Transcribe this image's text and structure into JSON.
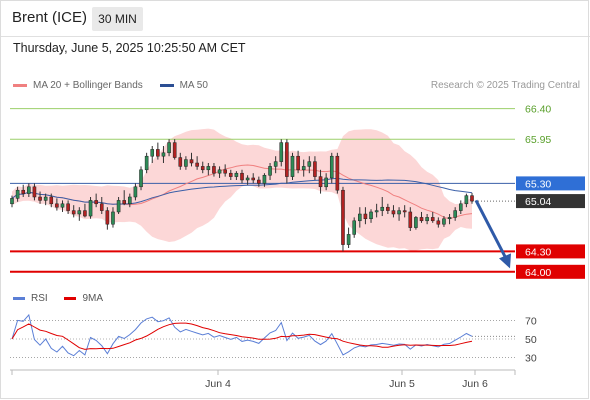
{
  "header": {
    "instrument": "Brent (ICE)",
    "timeframe": "30 MIN"
  },
  "timestamp": "Thursday, June 5, 2025 10:25:50 AM CET",
  "legend": {
    "ma20_label": "MA 20 + Bollinger Bands",
    "ma50_label": "MA 50",
    "copyright": "Research © 2025 Trading Central"
  },
  "rsi_legend": {
    "rsi_label": "RSI",
    "ma9_label": "9MA"
  },
  "colors": {
    "ma20": "#f08080",
    "ma50": "#3a5fa8",
    "band": "#fbd0d0",
    "green_level": "#9bcf6a",
    "blue_level": "#3a5fa8",
    "red_level": "#e00000",
    "candle_up": "#2e8b57",
    "candle_down": "#b22222",
    "arrow": "#2f5aa8",
    "last_price": "#333333"
  },
  "chart_data": {
    "type": "candlestick",
    "y_range": [
      63.85,
      66.6
    ],
    "x_labels": [
      "Jun 4",
      "Jun 5",
      "Jun 6"
    ],
    "levels": [
      {
        "value": 66.4,
        "label": "66.40",
        "kind": "resistance-green"
      },
      {
        "value": 65.95,
        "label": "65.95",
        "kind": "resistance-green"
      },
      {
        "value": 65.3,
        "label": "65.30",
        "kind": "pivot-blue"
      },
      {
        "value": 65.04,
        "label": "65.04",
        "kind": "last-price"
      },
      {
        "value": 64.3,
        "label": "64.30",
        "kind": "support-red"
      },
      {
        "value": 64.0,
        "label": "64.00",
        "kind": "support-red"
      }
    ],
    "forecast_arrow": {
      "from": 65.05,
      "to": 64.05,
      "direction": "down"
    },
    "candles": [
      [
        65.0,
        65.12,
        64.95,
        65.08
      ],
      [
        65.08,
        65.25,
        65.03,
        65.2
      ],
      [
        65.2,
        65.28,
        65.1,
        65.15
      ],
      [
        65.15,
        65.3,
        65.1,
        65.25
      ],
      [
        65.25,
        65.3,
        65.05,
        65.1
      ],
      [
        65.1,
        65.18,
        65.0,
        65.05
      ],
      [
        65.05,
        65.15,
        64.98,
        65.1
      ],
      [
        65.1,
        65.15,
        64.95,
        65.0
      ],
      [
        65.0,
        65.08,
        64.9,
        64.95
      ],
      [
        64.95,
        65.05,
        64.88,
        65.0
      ],
      [
        65.0,
        65.05,
        64.85,
        64.9
      ],
      [
        64.9,
        64.98,
        64.8,
        64.85
      ],
      [
        64.85,
        64.95,
        64.75,
        64.9
      ],
      [
        64.9,
        65.0,
        64.8,
        64.82
      ],
      [
        64.82,
        65.1,
        64.78,
        65.05
      ],
      [
        65.05,
        65.15,
        64.95,
        65.0
      ],
      [
        65.0,
        65.1,
        64.85,
        64.9
      ],
      [
        64.9,
        64.95,
        64.62,
        64.7
      ],
      [
        64.7,
        64.95,
        64.65,
        64.88
      ],
      [
        64.88,
        65.1,
        64.85,
        65.05
      ],
      [
        65.05,
        65.2,
        64.98,
        65.0
      ],
      [
        65.0,
        65.15,
        64.95,
        65.1
      ],
      [
        65.1,
        65.3,
        65.05,
        65.25
      ],
      [
        65.25,
        65.55,
        65.2,
        65.5
      ],
      [
        65.5,
        65.75,
        65.45,
        65.7
      ],
      [
        65.7,
        65.85,
        65.6,
        65.8
      ],
      [
        65.8,
        65.9,
        65.65,
        65.7
      ],
      [
        65.7,
        65.85,
        65.6,
        65.75
      ],
      [
        65.75,
        65.95,
        65.7,
        65.9
      ],
      [
        65.9,
        65.95,
        65.65,
        65.68
      ],
      [
        65.68,
        65.75,
        65.5,
        65.55
      ],
      [
        65.55,
        65.7,
        65.5,
        65.65
      ],
      [
        65.65,
        65.75,
        65.55,
        65.6
      ],
      [
        65.6,
        65.7,
        65.5,
        65.55
      ],
      [
        65.55,
        65.62,
        65.45,
        65.5
      ],
      [
        65.5,
        65.6,
        65.42,
        65.55
      ],
      [
        65.55,
        65.6,
        65.4,
        65.45
      ],
      [
        65.45,
        65.55,
        65.38,
        65.5
      ],
      [
        65.5,
        65.58,
        65.4,
        65.45
      ],
      [
        65.45,
        65.5,
        65.35,
        65.4
      ],
      [
        65.4,
        65.48,
        65.35,
        65.45
      ],
      [
        65.45,
        65.5,
        65.3,
        65.35
      ],
      [
        65.35,
        65.42,
        65.28,
        65.38
      ],
      [
        65.38,
        65.45,
        65.3,
        65.35
      ],
      [
        65.35,
        65.4,
        65.25,
        65.3
      ],
      [
        65.3,
        65.45,
        65.25,
        65.42
      ],
      [
        65.42,
        65.6,
        65.35,
        65.55
      ],
      [
        65.55,
        65.7,
        65.45,
        65.62
      ],
      [
        65.62,
        65.95,
        65.55,
        65.9
      ],
      [
        65.9,
        65.95,
        65.3,
        65.4
      ],
      [
        65.4,
        65.75,
        65.35,
        65.7
      ],
      [
        65.7,
        65.78,
        65.45,
        65.5
      ],
      [
        65.5,
        65.65,
        65.4,
        65.55
      ],
      [
        65.55,
        65.7,
        65.45,
        65.62
      ],
      [
        65.62,
        65.7,
        65.35,
        65.4
      ],
      [
        65.4,
        65.5,
        65.15,
        65.25
      ],
      [
        65.25,
        65.45,
        65.2,
        65.38
      ],
      [
        65.38,
        65.75,
        65.3,
        65.7
      ],
      [
        65.7,
        65.75,
        65.15,
        65.2
      ],
      [
        65.2,
        65.25,
        64.3,
        64.4
      ],
      [
        64.4,
        64.65,
        64.35,
        64.55
      ],
      [
        64.55,
        64.8,
        64.5,
        64.75
      ],
      [
        64.75,
        64.95,
        64.65,
        64.85
      ],
      [
        64.85,
        64.95,
        64.7,
        64.78
      ],
      [
        64.78,
        64.92,
        64.72,
        64.88
      ],
      [
        64.88,
        65.0,
        64.8,
        64.9
      ],
      [
        64.9,
        65.1,
        64.82,
        64.95
      ],
      [
        64.95,
        65.0,
        64.85,
        64.9
      ],
      [
        64.9,
        64.98,
        64.8,
        64.85
      ],
      [
        64.85,
        64.95,
        64.75,
        64.9
      ],
      [
        64.9,
        64.98,
        64.8,
        64.88
      ],
      [
        64.88,
        64.95,
        64.6,
        64.65
      ],
      [
        64.65,
        64.82,
        64.62,
        64.8
      ],
      [
        64.8,
        64.88,
        64.72,
        64.75
      ],
      [
        64.75,
        64.85,
        64.7,
        64.8
      ],
      [
        64.8,
        64.88,
        64.72,
        64.75
      ],
      [
        64.75,
        64.8,
        64.65,
        64.7
      ],
      [
        64.7,
        64.82,
        64.66,
        64.78
      ],
      [
        64.78,
        64.85,
        64.7,
        64.8
      ],
      [
        64.8,
        64.95,
        64.75,
        64.9
      ],
      [
        64.9,
        65.05,
        64.85,
        65.0
      ],
      [
        65.0,
        65.15,
        64.95,
        65.12
      ],
      [
        65.12,
        65.16,
        65.0,
        65.04
      ]
    ],
    "rsi": {
      "levels": [
        70,
        50,
        30
      ],
      "range": [
        22,
        78
      ]
    }
  }
}
